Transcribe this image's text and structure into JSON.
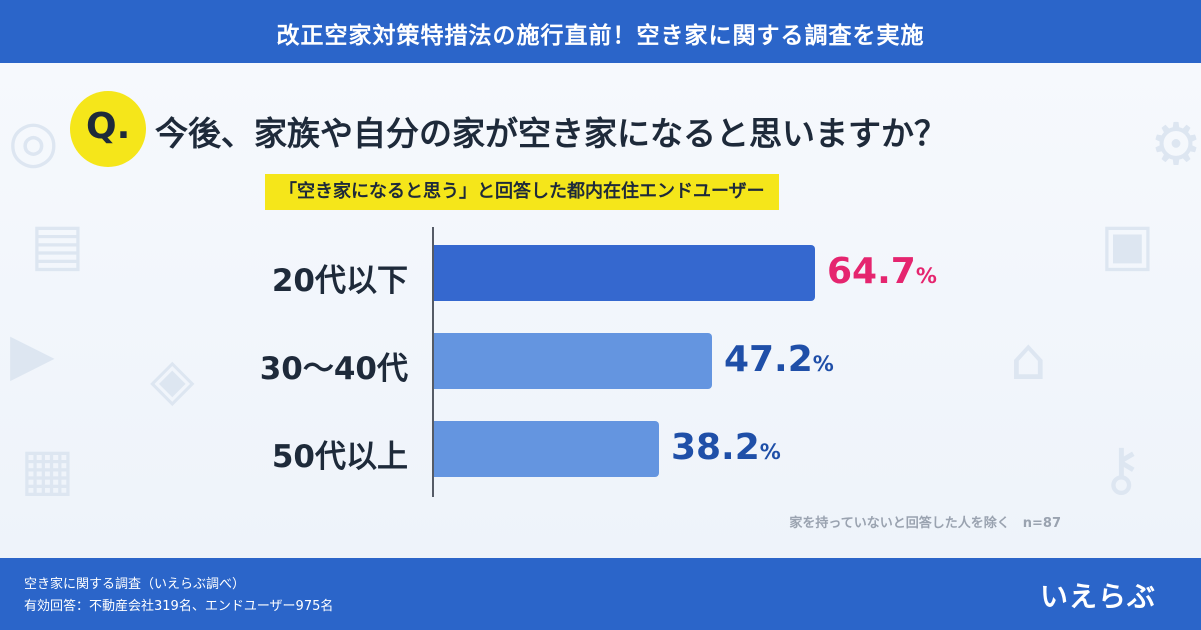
{
  "header": {
    "banner": "改正空家対策特措法の施行直前！空き家に関する調査を実施"
  },
  "question": {
    "mark": "Q.",
    "text": "今後、家族や自分の家が空き家になると思いますか？"
  },
  "subject_label": "「空き家になると思う」と回答した都内在住エンドユーザー",
  "colors": {
    "banner": "#2b65c9",
    "highlight": "#f5e61a",
    "bar_top": "#3568cf",
    "bar_other": "#6495e0",
    "value_top": "#e5256f",
    "value_other": "#1f4fa8"
  },
  "chart_data": {
    "type": "bar",
    "orientation": "horizontal",
    "categories": [
      "20代以下",
      "30〜40代",
      "50代以上"
    ],
    "values": [
      64.7,
      47.2,
      38.2
    ],
    "value_labels": [
      "64.7",
      "47.2",
      "38.2"
    ],
    "unit": "%",
    "grid": false
  },
  "note": "家を持っていないと回答した人を除く　n=87",
  "footer": {
    "source_line1": "空き家に関する調査（いえらぶ調べ）",
    "source_line2": "有効回答：不動産会社319名、エンドユーザー975名",
    "logo": "いえらぶ"
  }
}
